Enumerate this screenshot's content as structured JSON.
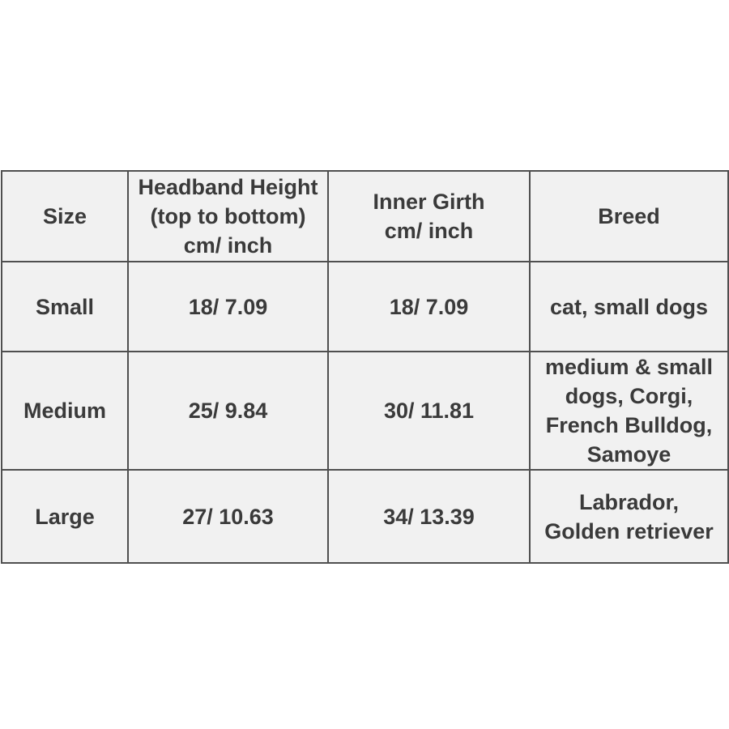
{
  "table": {
    "columns": [
      {
        "id": "size",
        "label": "Size"
      },
      {
        "id": "headband_height",
        "label": "Headband Height\n(top to bottom)\ncm/ inch"
      },
      {
        "id": "inner_girth",
        "label": "Inner Girth\ncm/ inch"
      },
      {
        "id": "breed",
        "label": "Breed"
      }
    ],
    "rows": [
      {
        "size": "Small",
        "headband_height": "18/ 7.09",
        "inner_girth": "18/ 7.09",
        "breed": "cat, small dogs"
      },
      {
        "size": "Medium",
        "headband_height": "25/ 9.84",
        "inner_girth": "30/ 11.81",
        "breed": "medium & small dogs, Corgi, French Bulldog, Samoye"
      },
      {
        "size": "Large",
        "headband_height": "27/ 10.63",
        "inner_girth": "34/ 13.39",
        "breed": "Labrador,\nGolden retriever"
      }
    ]
  },
  "chart_data": {
    "type": "table",
    "title": "",
    "columns": [
      "Size",
      "Headband Height (top to bottom) cm/ inch",
      "Inner Girth cm/ inch",
      "Breed"
    ],
    "rows": [
      [
        "Small",
        "18/ 7.09",
        "18/ 7.09",
        "cat, small dogs"
      ],
      [
        "Medium",
        "25/ 9.84",
        "30/ 11.81",
        "medium & small dogs, Corgi, French Bulldog, Samoye"
      ],
      [
        "Large",
        "27/ 10.63",
        "34/ 13.39",
        "Labrador, Golden retriever"
      ]
    ]
  },
  "colors": {
    "page_background": "#ffffff",
    "cell_background": "#f1f1f1",
    "border": "#4f4f4f",
    "text": "#3a3a3a"
  }
}
